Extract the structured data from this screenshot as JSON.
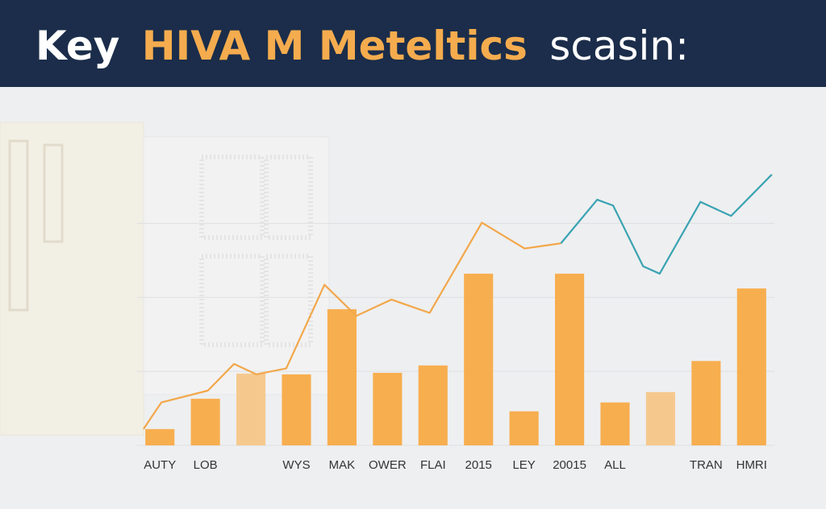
{
  "header": {
    "title": [
      "Key",
      "HIVA M Meteltics",
      "scasin:"
    ]
  },
  "chart_data": [
    {
      "type": "bar",
      "categories": [
        "AUTY",
        "LOB",
        null,
        "WYS",
        "MAK",
        "OWER",
        "FLAI",
        "2015",
        "LEY",
        "20015",
        "ALL",
        null,
        "TRAN",
        "HMRI"
      ],
      "values": [
        2.2,
        6.3,
        9.7,
        9.6,
        18.4,
        9.8,
        10.8,
        23.2,
        4.6,
        23.2,
        5.8,
        7.2,
        11.4,
        21.2
      ],
      "colors": [
        "#f7ae4f",
        "#f7ae4f",
        "#f5c98e",
        "#f7ae4f",
        "#f7ae4f",
        "#f7ae4f",
        "#f7ae4f",
        "#f7ae4f",
        "#f7ae4f",
        "#f7ae4f",
        "#f7ae4f",
        "#f5c98e",
        "#f7ae4f",
        "#f7ae4f"
      ],
      "ylim": [
        0,
        37
      ],
      "yticks": [
        10,
        20,
        30
      ],
      "grid": true
    },
    {
      "type": "line",
      "xlim": [
        0,
        100
      ],
      "ylim": [
        0,
        37
      ],
      "series": [
        {
          "color": "#f2a74a",
          "x": [
            1.0,
            3.8,
            11.1,
            15.2,
            18.7,
            23.4,
            29.4,
            34.4,
            39.9,
            45.9,
            54.1,
            60.8,
            66.5
          ],
          "values": [
            2.2,
            5.8,
            7.4,
            11.0,
            9.6,
            10.4,
            21.7,
            17.5,
            19.7,
            17.9,
            30.1,
            26.6,
            27.3
          ]
        },
        {
          "color": "#3aa3b3",
          "x": [
            66.5,
            72.2,
            74.7,
            79.4,
            82.0,
            88.4,
            93.2,
            99.6
          ],
          "values": [
            27.3,
            33.2,
            32.4,
            24.2,
            23.2,
            32.9,
            31.0,
            36.6
          ]
        }
      ]
    }
  ]
}
